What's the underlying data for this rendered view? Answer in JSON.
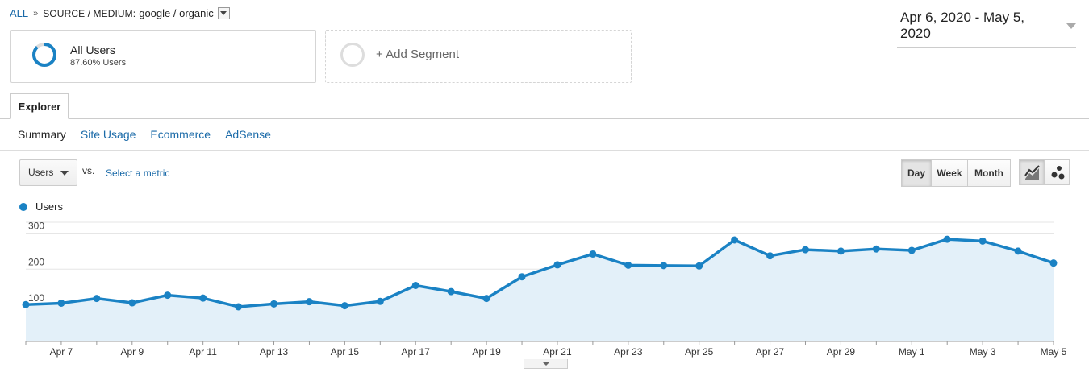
{
  "breadcrumb": {
    "all_label": "ALL",
    "separator": "»",
    "dimension_label": "SOURCE / MEDIUM:",
    "dimension_value": "google / organic"
  },
  "date_range": {
    "label": "Apr 6, 2020 - May 5, 2020"
  },
  "segments": {
    "primary": {
      "title": "All Users",
      "subtitle": "87.60% Users",
      "ring_fraction": 0.876
    },
    "add_label": "+ Add Segment"
  },
  "tabs": {
    "explorer": "Explorer"
  },
  "subtabs": [
    {
      "label": "Summary",
      "active": true
    },
    {
      "label": "Site Usage",
      "active": false
    },
    {
      "label": "Ecommerce",
      "active": false
    },
    {
      "label": "AdSense",
      "active": false
    }
  ],
  "metric": {
    "selected": "Users",
    "vs_label": "vs.",
    "select_metric_label": "Select a metric"
  },
  "granularity": {
    "day": "Day",
    "week": "Week",
    "month": "Month",
    "selected": "Day"
  },
  "colors": {
    "accent": "#1a82c4",
    "link": "#1a6aa8",
    "area_fill": "#e3f0f9"
  },
  "chart_data": {
    "type": "line",
    "series": [
      {
        "name": "Users",
        "values": [
          102,
          106,
          119,
          107,
          128,
          120,
          96,
          104,
          110,
          99,
          111,
          155,
          138,
          119,
          179,
          212,
          242,
          211,
          210,
          209,
          281,
          237,
          254,
          250,
          256,
          252,
          283,
          278,
          250,
          217
        ]
      }
    ],
    "x": [
      "Apr 6",
      "Apr 7",
      "Apr 8",
      "Apr 9",
      "Apr 10",
      "Apr 11",
      "Apr 12",
      "Apr 13",
      "Apr 14",
      "Apr 15",
      "Apr 16",
      "Apr 17",
      "Apr 18",
      "Apr 19",
      "Apr 20",
      "Apr 21",
      "Apr 22",
      "Apr 23",
      "Apr 24",
      "Apr 25",
      "Apr 26",
      "Apr 27",
      "Apr 28",
      "Apr 29",
      "Apr 30",
      "May 1",
      "May 2",
      "May 3",
      "May 4",
      "May 5"
    ],
    "x_tick_labels": [
      "Apr 7",
      "Apr 9",
      "Apr 11",
      "Apr 13",
      "Apr 15",
      "Apr 17",
      "Apr 19",
      "Apr 21",
      "Apr 23",
      "Apr 25",
      "Apr 27",
      "Apr 29",
      "May 1",
      "May 3",
      "May 5"
    ],
    "y_ticks": [
      100,
      200,
      300
    ],
    "ylim": [
      0,
      330
    ],
    "grid": true
  }
}
